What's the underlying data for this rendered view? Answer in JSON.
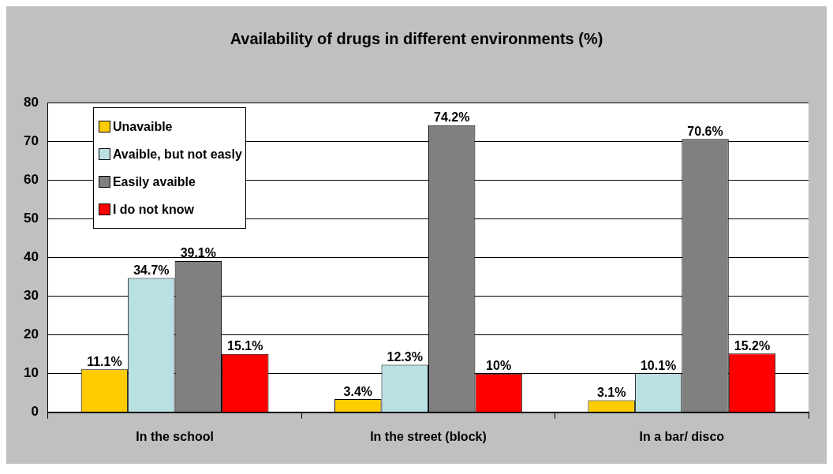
{
  "chart_data": {
    "type": "bar",
    "title": "Availability of drugs in different environments (%)",
    "categories": [
      "In the school",
      "In the street (block)",
      "In a bar/ disco"
    ],
    "series": [
      {
        "name": "Unavaible",
        "color": "#ffcc00",
        "values": [
          11.1,
          3.4,
          3.1
        ],
        "value_labels": [
          "11.1%",
          "3.4%",
          "3.1%"
        ]
      },
      {
        "name": "Avaible, but not easly",
        "color": "#b9e0e3",
        "values": [
          34.7,
          12.3,
          10.1
        ],
        "value_labels": [
          "34.7%",
          "12.3%",
          "10.1%"
        ]
      },
      {
        "name": "Easily avaible",
        "color": "#808080",
        "values": [
          39.1,
          74.2,
          70.6
        ],
        "value_labels": [
          "39.1%",
          "74.2%",
          "70.6%"
        ]
      },
      {
        "name": "I do not know",
        "color": "#ff0000",
        "values": [
          15.1,
          10,
          15.2
        ],
        "value_labels": [
          "15.1%",
          "10%",
          "15.2%"
        ]
      }
    ],
    "ylim": [
      0,
      80
    ],
    "yticks": [
      0,
      10,
      20,
      30,
      40,
      50,
      60,
      70,
      80
    ],
    "grid": "y",
    "legend": "top left"
  }
}
